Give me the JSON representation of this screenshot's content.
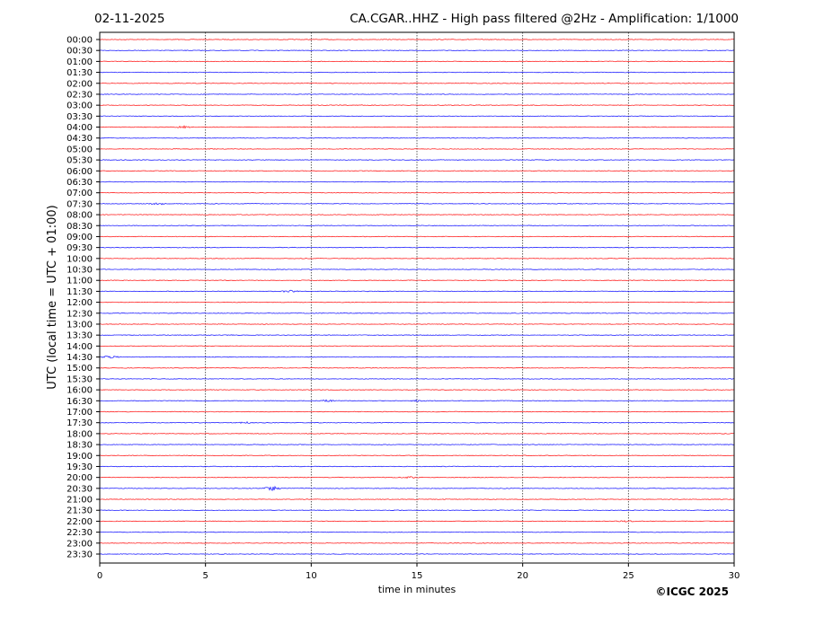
{
  "chart_data": {
    "type": "line",
    "title_left": "02-11-2025",
    "title": "CA.CGAR..HHZ - High pass filtered @2Hz - Amplification: 1/1000",
    "xlabel": "time in minutes",
    "ylabel": "UTC (local time = UTC + 01:00)",
    "xlim": [
      0,
      30
    ],
    "xticks": [
      "0",
      "5",
      "10",
      "15",
      "20",
      "25",
      "30"
    ],
    "xtick_values": [
      0,
      5,
      10,
      15,
      20,
      25,
      30
    ],
    "vertical_grid": true,
    "row_labels": [
      "00:00",
      "00:30",
      "01:00",
      "01:30",
      "02:00",
      "02:30",
      "03:00",
      "03:30",
      "04:00",
      "04:30",
      "05:00",
      "05:30",
      "06:00",
      "06:30",
      "07:00",
      "07:30",
      "08:00",
      "08:30",
      "09:00",
      "09:30",
      "10:00",
      "10:30",
      "11:00",
      "11:30",
      "12:00",
      "12:30",
      "13:00",
      "13:30",
      "14:00",
      "14:30",
      "15:00",
      "15:30",
      "16:00",
      "16:30",
      "17:00",
      "17:30",
      "18:00",
      "18:30",
      "19:00",
      "19:30",
      "20:00",
      "20:30",
      "21:00",
      "21:30",
      "22:00",
      "22:30",
      "23:00",
      "23:30"
    ],
    "trace_colors": [
      "#ff0000",
      "#0000ff"
    ],
    "events": [
      {
        "row": "04:00",
        "minute": 4.0,
        "amplitude": 1.2
      },
      {
        "row": "07:30",
        "minute": 2.8,
        "amplitude": 1.0
      },
      {
        "row": "11:30",
        "minute": 9.0,
        "amplitude": 1.2
      },
      {
        "row": "14:30",
        "minute": 0.5,
        "amplitude": 1.5
      },
      {
        "row": "16:30",
        "minute": 10.7,
        "amplitude": 1.0
      },
      {
        "row": "16:30",
        "minute": 15.0,
        "amplitude": 0.8
      },
      {
        "row": "17:30",
        "minute": 6.9,
        "amplitude": 0.8
      },
      {
        "row": "20:00",
        "minute": 14.7,
        "amplitude": 0.8
      },
      {
        "row": "20:30",
        "minute": 8.2,
        "amplitude": 2.5
      },
      {
        "row": "22:00",
        "minute": 24.8,
        "amplitude": 0.8
      }
    ]
  },
  "copyright": "©ICGC 2025"
}
